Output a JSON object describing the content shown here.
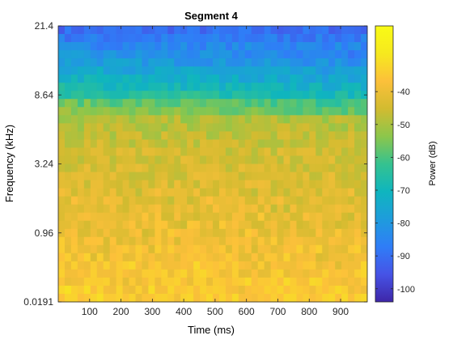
{
  "chart_data": {
    "type": "heatmap",
    "title": "Segment 4",
    "xlabel": "Time (ms)",
    "ylabel": "Frequency (kHz)",
    "colorbar_label": "Power (dB)",
    "xlim": [
      0,
      985
    ],
    "x_ticks": [
      100,
      200,
      300,
      400,
      500,
      600,
      700,
      800,
      900
    ],
    "y_scale": "log",
    "y_tick_labels": [
      "21.4",
      "8.64",
      "3.24",
      "0.96",
      "0.0191"
    ],
    "clim": [
      -104,
      -20
    ],
    "colorbar_ticks": [
      -40,
      -50,
      -60,
      -70,
      -80,
      -90,
      -100
    ],
    "colormap": "parula",
    "colormap_stops": [
      "#3e26a8",
      "#4653e6",
      "#2f7df7",
      "#1e9cdc",
      "#0fb5be",
      "#35c28f",
      "#8cc64b",
      "#d2bb30",
      "#fcc03a",
      "#f6e91e",
      "#f9fb15"
    ],
    "grid": false,
    "grid_columns": 48,
    "grid_rows": 34,
    "power_profile_db": [
      [
        0.0,
        -92
      ],
      [
        0.05,
        -87
      ],
      [
        0.11,
        -80
      ],
      [
        0.18,
        -72
      ],
      [
        0.24,
        -66
      ],
      [
        0.27,
        -58
      ],
      [
        0.33,
        -50
      ],
      [
        0.45,
        -45
      ],
      [
        0.65,
        -42
      ],
      [
        0.85,
        -38
      ],
      [
        1.0,
        -34
      ]
    ],
    "profile_note": "approximate power (dB) vs. normalized height from top of plot; upper high-frequency band fades slightly toward later times"
  }
}
